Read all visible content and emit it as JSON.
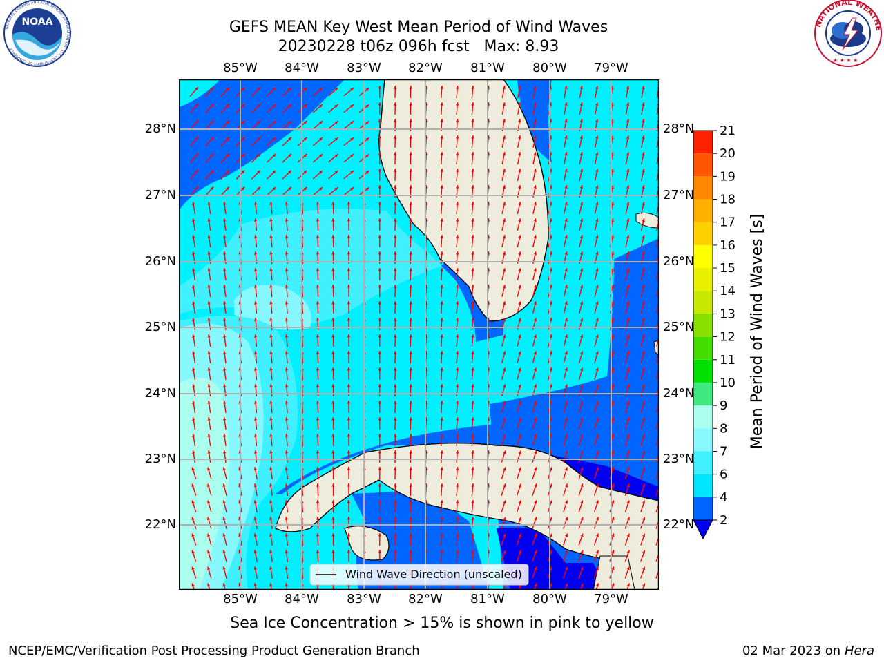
{
  "header": {
    "title_line1": "GEFS MEAN Key West Mean Period of Wind Waves",
    "title_line2": "20230228 t06z 096h fcst   Max: 8.93"
  },
  "logos": {
    "left": "NOAA",
    "left_ring_text": "NATIONAL OCEANIC AND ATMOSPHERIC ADMINISTRATION · U.S. DEPARTMENT OF COMMERCE",
    "right_ring_text": "NATIONAL WEATHER SERVICE"
  },
  "map": {
    "lon_labels": [
      "85°W",
      "84°W",
      "83°W",
      "82°W",
      "81°W",
      "80°W",
      "79°W"
    ],
    "lat_labels": [
      "28°N",
      "27°N",
      "26°N",
      "25°N",
      "24°N",
      "23°N",
      "22°N"
    ],
    "legend_label": "Wind Wave Direction (unscaled)",
    "colors": {
      "land": "#eeecdc",
      "arrow": "#ff0000",
      "grid": "#b0b0b0"
    }
  },
  "colorbar": {
    "label": "Mean Period of Wind Waves [s]",
    "ticks": [
      "2",
      "4",
      "6",
      "7",
      "8",
      "9",
      "10",
      "11",
      "12",
      "13",
      "14",
      "15",
      "16",
      "17",
      "18",
      "19",
      "20",
      "21"
    ],
    "colors": [
      "#0066ff",
      "#00e5ff",
      "#40f0ff",
      "#88f8ff",
      "#aaffee",
      "#40e880",
      "#00e000",
      "#44dd00",
      "#88e000",
      "#c8e800",
      "#e8f000",
      "#ffff00",
      "#ffd000",
      "#ffb000",
      "#ff8800",
      "#ff5500",
      "#ff2200"
    ],
    "under_color": "#0000ee"
  },
  "footer": {
    "subtitle": "Sea Ice Concentration > 15% is shown in pink to yellow",
    "left": "NCEP/EMC/Verification Post Processing Product Generation Branch",
    "right_date": "02 Mar 2023 on",
    "right_machine": "Hera"
  }
}
